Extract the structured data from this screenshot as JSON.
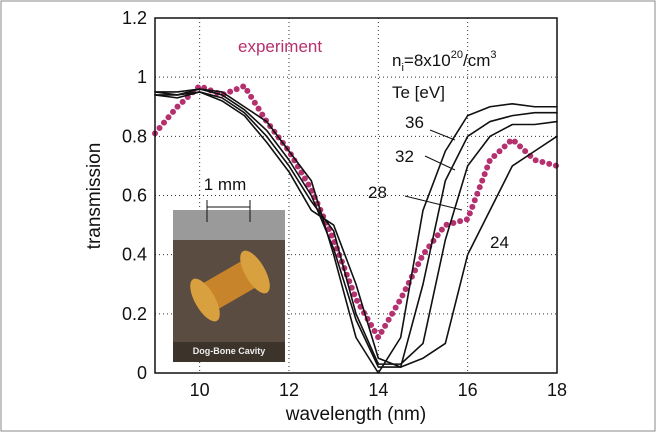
{
  "chart_data": {
    "type": "line",
    "x_label": "wavelength  (nm)",
    "y_label": "transmission",
    "x": [
      9,
      9.5,
      10,
      10.5,
      11,
      11.5,
      12,
      12.5,
      13,
      13.5,
      14,
      14.5,
      15,
      15.5,
      16,
      16.5,
      17,
      17.5,
      18
    ],
    "series": [
      {
        "name": "experiment",
        "color": "#b5306f",
        "values": [
          0.81,
          0.9,
          0.97,
          0.94,
          0.97,
          0.85,
          0.75,
          0.62,
          0.45,
          0.25,
          0.12,
          0.25,
          0.4,
          0.5,
          0.52,
          0.72,
          0.79,
          0.72,
          0.7
        ]
      },
      {
        "name": "36",
        "color": "#111111",
        "values": [
          0.95,
          0.95,
          0.96,
          0.95,
          0.9,
          0.85,
          0.75,
          0.65,
          0.4,
          0.12,
          0.0,
          0.12,
          0.55,
          0.75,
          0.87,
          0.9,
          0.91,
          0.9,
          0.9
        ]
      },
      {
        "name": "32",
        "color": "#111111",
        "values": [
          0.95,
          0.94,
          0.96,
          0.94,
          0.89,
          0.82,
          0.72,
          0.6,
          0.42,
          0.18,
          0.02,
          0.02,
          0.3,
          0.65,
          0.8,
          0.85,
          0.87,
          0.88,
          0.88
        ]
      },
      {
        "name": "28",
        "color": "#111111",
        "values": [
          0.94,
          0.94,
          0.95,
          0.93,
          0.88,
          0.8,
          0.7,
          0.58,
          0.48,
          0.2,
          0.03,
          0.03,
          0.1,
          0.45,
          0.7,
          0.8,
          0.84,
          0.84,
          0.85
        ]
      },
      {
        "name": "24",
        "color": "#111111",
        "values": [
          0.94,
          0.93,
          0.95,
          0.92,
          0.87,
          0.78,
          0.68,
          0.55,
          0.5,
          0.3,
          0.05,
          0.02,
          0.05,
          0.1,
          0.4,
          0.55,
          0.7,
          0.75,
          0.8
        ]
      }
    ],
    "xlim": [
      9,
      18
    ],
    "xticks": [
      10,
      12,
      14,
      16,
      18
    ],
    "ylim": [
      0,
      1.2
    ],
    "yticks": [
      0,
      0.2,
      0.4,
      0.6,
      0.8,
      1,
      1.2
    ],
    "grid": true,
    "annotations": {
      "density": {
        "n": "n",
        "sub": "i",
        "mid": "=8x10",
        "sup": "20",
        "unit": "/cm",
        "sup2": "3"
      },
      "te": "Te [eV]",
      "scale": "1 mm",
      "inset_caption": "Dog-Bone Cavity"
    }
  }
}
